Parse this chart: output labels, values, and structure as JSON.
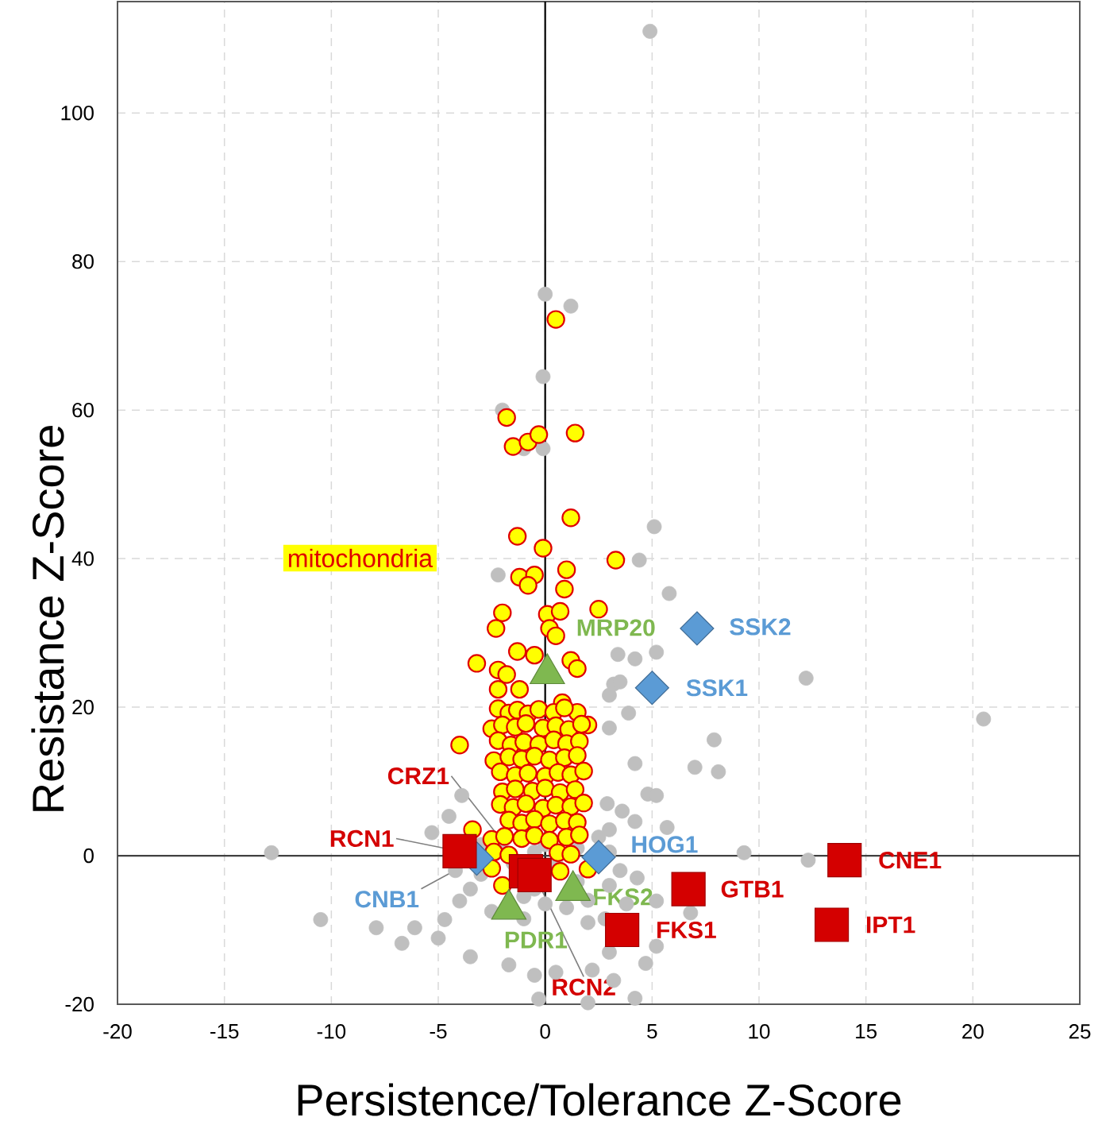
{
  "chart_data": {
    "type": "scatter",
    "xlabel": "Persistence/Tolerance Z-Score",
    "ylabel": "Resistance Z-Score",
    "xlim": [
      -20,
      25
    ],
    "ylim": [
      -20,
      115
    ],
    "xticks": [
      -20,
      -15,
      -10,
      -5,
      0,
      5,
      10,
      15,
      20,
      25
    ],
    "yticks": [
      -20,
      0,
      20,
      40,
      60,
      80,
      100
    ],
    "grid": true,
    "ref_lines": [
      {
        "axis": "x",
        "value": 0,
        "color": "#000000"
      },
      {
        "axis": "y",
        "value": 0,
        "color": "#404040"
      }
    ],
    "series": [
      {
        "color": "#bfbfbf",
        "marker": "circle",
        "x": [
          4.9,
          0.0,
          1.2,
          -0.1,
          -2.0,
          -0.1,
          -1.0,
          -2.2,
          5.1,
          4.4,
          5.8,
          3.4,
          4.2,
          5.2,
          12.2,
          3.2,
          3.0,
          3.5,
          3.9,
          3.0,
          20.5,
          7.9,
          7.0,
          8.1,
          4.2,
          4.8,
          5.2,
          3.6,
          4.2,
          5.7,
          9.3,
          12.3,
          6.8,
          5.2,
          4.7,
          4.2,
          -3.9,
          -4.5,
          -5.3,
          -12.8,
          -10.5,
          -6.7,
          -6.1,
          -5.0,
          -3.5,
          -1.7,
          -0.5,
          0.5,
          2.2,
          3.2,
          -0.3,
          2.0,
          5.2,
          -7.9,
          -4.7,
          -4.0,
          3.0,
          2.9,
          -3.0,
          -3.0,
          -1.0,
          0.0,
          1.0,
          2.0,
          3.0,
          3.5,
          3.0,
          2.5,
          1.5,
          0.5,
          -0.5,
          -1.5,
          1.5,
          -1.0,
          2.0,
          -2.5,
          -3.5,
          3.8,
          2.8,
          0.0,
          -2.0,
          -0.5,
          4.3,
          -4.2,
          3.0
        ],
        "values": [
          111,
          75.6,
          74.0,
          64.5,
          60.0,
          54.8,
          54.8,
          37.8,
          44.3,
          39.8,
          35.3,
          27.1,
          26.5,
          27.4,
          23.9,
          23.1,
          21.6,
          23.4,
          19.2,
          17.2,
          18.4,
          15.6,
          11.9,
          11.3,
          12.4,
          8.3,
          8.1,
          6.0,
          4.6,
          3.8,
          0.4,
          -0.6,
          -7.7,
          -12.2,
          -14.5,
          -19.2,
          8.1,
          5.3,
          3.1,
          0.4,
          -8.6,
          -11.8,
          -9.7,
          -11.1,
          -13.6,
          -14.7,
          -16.1,
          -15.7,
          -15.4,
          -16.8,
          -19.3,
          -19.8,
          -6.1,
          -9.7,
          -8.6,
          -6.1,
          3.5,
          7.0,
          1.5,
          -2.5,
          -5.5,
          -6.5,
          -7.0,
          -6.0,
          -4.0,
          -2.0,
          0.5,
          2.5,
          1.0,
          -1.0,
          0.5,
          -1.0,
          -3.5,
          -8.5,
          -9.0,
          -7.5,
          -4.5,
          -6.5,
          -8.5,
          1.5,
          2.0,
          -4.5,
          -3.0,
          -2.0,
          -13.0
        ]
      },
      {
        "name": "mitochondria",
        "color": "#ffff00",
        "marker": "circle",
        "x": [
          0.5,
          -1.8,
          -1.5,
          -0.8,
          -0.3,
          1.4,
          1.2,
          -1.3,
          -0.1,
          3.3,
          -1.2,
          -0.5,
          -0.8,
          1.0,
          0.9,
          2.5,
          -2.0,
          -2.3,
          0.1,
          0.7,
          0.2,
          0.5,
          -1.3,
          -3.2,
          -0.5,
          -2.2,
          -1.8,
          1.2,
          1.5,
          -2.2,
          -1.2,
          0.8,
          1.5,
          2.0,
          -4.0,
          -2.2,
          -1.7,
          -1.3,
          -0.8,
          -0.3,
          0.4,
          0.9,
          -2.5,
          -2.0,
          -1.4,
          -0.9,
          -0.1,
          0.5,
          1.1,
          1.7,
          -2.2,
          -1.6,
          -1.0,
          -0.3,
          0.4,
          1.0,
          1.6,
          -2.4,
          -1.7,
          -1.1,
          -0.5,
          0.2,
          0.9,
          1.5,
          -2.1,
          -1.4,
          -0.8,
          0.0,
          0.6,
          1.2,
          1.8,
          -2.0,
          -1.4,
          -0.6,
          0.0,
          0.7,
          1.4,
          -2.1,
          -1.5,
          -0.9,
          -0.1,
          0.5,
          1.2,
          1.8,
          -1.7,
          -1.1,
          -0.5,
          0.2,
          0.9,
          1.5,
          -2.5,
          -1.9,
          -1.1,
          -0.5,
          0.2,
          1.0,
          1.6,
          -2.4,
          -1.7,
          0.6,
          1.2,
          -2.5,
          0.7,
          2.0,
          -2.0,
          -3.4
        ],
        "values": [
          72.2,
          59.0,
          55.1,
          55.7,
          56.7,
          56.9,
          45.5,
          43.0,
          41.4,
          39.8,
          37.5,
          37.8,
          36.4,
          38.5,
          35.9,
          33.2,
          32.7,
          30.6,
          32.5,
          32.9,
          30.6,
          29.6,
          27.5,
          25.9,
          27.0,
          25.0,
          24.4,
          26.3,
          25.2,
          22.4,
          22.4,
          20.6,
          19.3,
          17.6,
          14.9,
          19.8,
          19.2,
          19.6,
          19.1,
          19.7,
          19.3,
          19.9,
          17.1,
          17.6,
          17.3,
          17.8,
          17.2,
          17.5,
          17.0,
          17.7,
          15.5,
          14.9,
          15.3,
          15.0,
          15.6,
          15.1,
          15.4,
          12.8,
          13.3,
          13.0,
          13.4,
          12.9,
          13.2,
          13.5,
          11.3,
          10.8,
          11.1,
          10.7,
          11.2,
          10.9,
          11.4,
          8.6,
          9.0,
          8.7,
          9.1,
          8.5,
          8.9,
          6.9,
          6.5,
          7.0,
          6.4,
          6.8,
          6.6,
          7.1,
          4.8,
          4.4,
          4.9,
          4.3,
          4.7,
          4.5,
          2.2,
          2.6,
          2.3,
          2.7,
          2.1,
          2.5,
          2.8,
          0.5,
          0.1,
          0.4,
          0.2,
          -1.7,
          -2.1,
          -1.8,
          -4.0,
          3.5
        ]
      },
      {
        "name": "CNB1",
        "color": "#5b9bd5",
        "marker": "diamond",
        "x": [
          -3.2
        ],
        "values": [
          -0.4
        ]
      },
      {
        "name": "HOG1",
        "color": "#5b9bd5",
        "marker": "diamond",
        "x": [
          2.5
        ],
        "values": [
          -0.2
        ]
      },
      {
        "name": "SSK1",
        "color": "#5b9bd5",
        "marker": "diamond",
        "x": [
          5.0
        ],
        "values": [
          22.6
        ]
      },
      {
        "name": "SSK2",
        "color": "#5b9bd5",
        "marker": "diamond",
        "x": [
          7.1
        ],
        "values": [
          30.6
        ]
      },
      {
        "name": "RCN1",
        "color": "#d40000",
        "marker": "square",
        "x": [
          -4.0
        ],
        "values": [
          0.6
        ]
      },
      {
        "name": "CRZ1",
        "color": "#d40000",
        "marker": "square",
        "x": [
          -0.9
        ],
        "values": [
          -2.1
        ]
      },
      {
        "name": "RCN2",
        "color": "#d40000",
        "marker": "square",
        "x": [
          -0.5
        ],
        "values": [
          -2.6
        ]
      },
      {
        "name": "FKS1",
        "color": "#d40000",
        "marker": "square",
        "x": [
          3.6
        ],
        "values": [
          -10.0
        ]
      },
      {
        "name": "GTB1",
        "color": "#d40000",
        "marker": "square",
        "x": [
          6.7
        ],
        "values": [
          -4.5
        ]
      },
      {
        "name": "CNE1",
        "color": "#d40000",
        "marker": "square",
        "x": [
          14.0
        ],
        "values": [
          -0.6
        ]
      },
      {
        "name": "IPT1",
        "color": "#d40000",
        "marker": "square",
        "x": [
          13.4
        ],
        "values": [
          -9.3
        ]
      },
      {
        "name": "MRP20",
        "color": "#7fb850",
        "marker": "triangle",
        "x": [
          0.1
        ],
        "values": [
          24.5
        ]
      },
      {
        "name": "PDR1",
        "color": "#7fb850",
        "marker": "triangle",
        "x": [
          -1.7
        ],
        "values": [
          -7.2
        ]
      },
      {
        "name": "FKS2",
        "color": "#7fb850",
        "marker": "triangle",
        "x": [
          1.3
        ],
        "values": [
          -4.7
        ]
      }
    ]
  }
}
